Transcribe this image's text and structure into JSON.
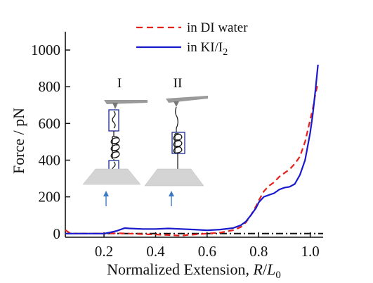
{
  "chart_data": {
    "type": "line",
    "xlabel_main": "Normalized Extension, ",
    "xlabel_R": "R",
    "xlabel_slash": "/",
    "xlabel_L": "L",
    "xlabel_sub": "0",
    "ylabel": "Force / pN",
    "xlim": [
      0.05,
      1.05
    ],
    "ylim": [
      -20,
      1100
    ],
    "xticks": [
      0.2,
      0.4,
      0.6,
      0.8,
      1.0
    ],
    "xtick_labels": [
      "0.2",
      "0.4",
      "0.6",
      "0.8",
      "1.0"
    ],
    "yticks": [
      0,
      200,
      400,
      600,
      800,
      1000
    ],
    "ytick_labels": [
      "0",
      "200",
      "400",
      "600",
      "800",
      "1000"
    ],
    "grid": false,
    "legend_placement": "top-right",
    "baseline": {
      "y": 0,
      "style": "dash-dot",
      "color": "#111111"
    },
    "series": [
      {
        "name": "in DI water",
        "style": "dashed",
        "color": "#e8201c",
        "x": [
          0.05,
          0.07,
          0.1,
          0.15,
          0.2,
          0.25,
          0.3,
          0.35,
          0.4,
          0.45,
          0.48,
          0.5,
          0.52,
          0.55,
          0.6,
          0.65,
          0.7,
          0.73,
          0.75,
          0.77,
          0.79,
          0.8,
          0.82,
          0.84,
          0.86,
          0.88,
          0.9,
          0.92,
          0.94,
          0.96,
          0.98,
          1.0,
          1.01,
          1.02,
          1.03
        ],
        "values": [
          20,
          0,
          0,
          0,
          0,
          2,
          0,
          -3,
          -5,
          -8,
          -10,
          -12,
          -8,
          -5,
          0,
          5,
          18,
          35,
          60,
          100,
          150,
          180,
          230,
          260,
          280,
          310,
          330,
          350,
          380,
          420,
          500,
          620,
          680,
          760,
          820
        ]
      },
      {
        "name_prefix": "in KI/I",
        "name_sub": "2",
        "style": "solid",
        "color": "#1a1acd",
        "x": [
          0.05,
          0.1,
          0.15,
          0.2,
          0.22,
          0.25,
          0.28,
          0.3,
          0.35,
          0.4,
          0.45,
          0.5,
          0.55,
          0.6,
          0.65,
          0.7,
          0.73,
          0.75,
          0.77,
          0.79,
          0.8,
          0.82,
          0.84,
          0.86,
          0.88,
          0.9,
          0.92,
          0.94,
          0.96,
          0.98,
          1.0,
          1.01,
          1.02,
          1.03
        ],
        "values": [
          0,
          0,
          0,
          0,
          5,
          15,
          30,
          28,
          25,
          25,
          28,
          25,
          22,
          18,
          22,
          30,
          45,
          65,
          100,
          140,
          170,
          200,
          210,
          220,
          240,
          250,
          255,
          270,
          320,
          400,
          550,
          650,
          780,
          920
        ]
      }
    ],
    "inset": {
      "label_I": "I",
      "label_II": "II"
    }
  }
}
